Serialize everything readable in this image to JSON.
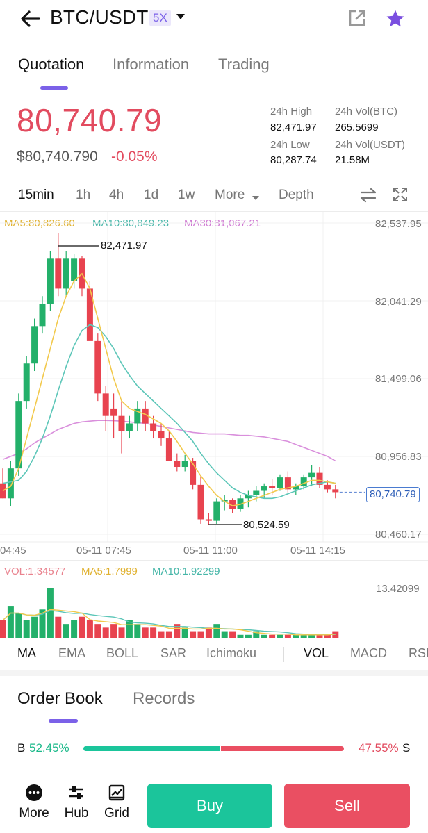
{
  "header": {
    "pair": "BTC/USDT",
    "leverage": "5X",
    "icons": [
      "back-arrow-icon",
      "caret-down-icon",
      "share-icon",
      "star-icon"
    ]
  },
  "tabs": [
    {
      "label": "Quotation",
      "active": true
    },
    {
      "label": "Information",
      "active": false
    },
    {
      "label": "Trading",
      "active": false
    }
  ],
  "price": {
    "last": "80,740.79",
    "usd": "$80,740.790",
    "change": "-0.05%"
  },
  "stats": {
    "high_label": "24h High",
    "high_value": "82,471.97",
    "low_label": "24h Low",
    "low_value": "80,287.74",
    "vol_btc_label": "24h Vol(BTC)",
    "vol_btc_value": "265.5699",
    "vol_usdt_label": "24h Vol(USDT)",
    "vol_usdt_value": "21.58M"
  },
  "intervals": [
    {
      "label": "15min",
      "active": true
    },
    {
      "label": "1h",
      "active": false
    },
    {
      "label": "4h",
      "active": false
    },
    {
      "label": "1d",
      "active": false
    },
    {
      "label": "1w",
      "active": false
    },
    {
      "label": "More",
      "active": false
    },
    {
      "label": "Depth",
      "active": false
    }
  ],
  "chart": {
    "ma5_label": "MA5:80,826.60",
    "ma10_label": "MA10:80,849.23",
    "ma30_label": "MA30:81,067.21",
    "y_ticks": [
      "82,537.95",
      "82,041.29",
      "81,499.06",
      "80,956.83",
      "80,460.17"
    ],
    "x_ticks": [
      "04:45",
      "05-11 07:45",
      "05-11 11:00",
      "05-11 14:15"
    ],
    "high_marker": "82,471.97",
    "low_marker": "80,524.59",
    "last_marker": "80,740.79",
    "colors": {
      "up": "#23b06a",
      "down": "#e8434f",
      "ma5": "#f2c94c",
      "ma10": "#5cc6b8",
      "ma30": "#d98fdc"
    }
  },
  "chart_data": {
    "type": "candlestick",
    "ylim": [
      80460.17,
      82537.95
    ],
    "candles": [
      {
        "o": 80800,
        "h": 80900,
        "l": 80700,
        "c": 80700
      },
      {
        "o": 80700,
        "h": 80950,
        "l": 80650,
        "c": 80900
      },
      {
        "o": 80900,
        "h": 81400,
        "l": 80850,
        "c": 81350
      },
      {
        "o": 81350,
        "h": 81650,
        "l": 81300,
        "c": 81600
      },
      {
        "o": 81600,
        "h": 81900,
        "l": 81550,
        "c": 81850
      },
      {
        "o": 81850,
        "h": 82050,
        "l": 81800,
        "c": 82000
      },
      {
        "o": 82000,
        "h": 82350,
        "l": 81950,
        "c": 82300
      },
      {
        "o": 82300,
        "h": 82472,
        "l": 82050,
        "c": 82100
      },
      {
        "o": 82100,
        "h": 82350,
        "l": 82050,
        "c": 82300
      },
      {
        "o": 82150,
        "h": 82330,
        "l": 82100,
        "c": 82300
      },
      {
        "o": 82300,
        "h": 82320,
        "l": 82050,
        "c": 82100
      },
      {
        "o": 82100,
        "h": 82150,
        "l": 81750,
        "c": 81750
      },
      {
        "o": 81750,
        "h": 81800,
        "l": 81350,
        "c": 81400
      },
      {
        "o": 81400,
        "h": 81450,
        "l": 81150,
        "c": 81250
      },
      {
        "o": 81300,
        "h": 81400,
        "l": 81100,
        "c": 81250
      },
      {
        "o": 81250,
        "h": 81350,
        "l": 81000,
        "c": 81150
      },
      {
        "o": 81150,
        "h": 81250,
        "l": 81100,
        "c": 81200
      },
      {
        "o": 81200,
        "h": 81350,
        "l": 81150,
        "c": 81300
      },
      {
        "o": 81300,
        "h": 81350,
        "l": 81150,
        "c": 81200
      },
      {
        "o": 81200,
        "h": 81250,
        "l": 81100,
        "c": 81150
      },
      {
        "o": 81150,
        "h": 81200,
        "l": 81050,
        "c": 81100
      },
      {
        "o": 81100,
        "h": 81150,
        "l": 80950,
        "c": 80950
      },
      {
        "o": 80950,
        "h": 81000,
        "l": 80880,
        "c": 80910
      },
      {
        "o": 80910,
        "h": 80990,
        "l": 80880,
        "c": 80950
      },
      {
        "o": 80950,
        "h": 80970,
        "l": 80760,
        "c": 80790
      },
      {
        "o": 80790,
        "h": 80850,
        "l": 80530,
        "c": 80560
      },
      {
        "o": 80560,
        "h": 80600,
        "l": 80525,
        "c": 80550
      },
      {
        "o": 80550,
        "h": 80700,
        "l": 80530,
        "c": 80680
      },
      {
        "o": 80680,
        "h": 80720,
        "l": 80620,
        "c": 80690
      },
      {
        "o": 80690,
        "h": 80700,
        "l": 80600,
        "c": 80630
      },
      {
        "o": 80630,
        "h": 80720,
        "l": 80610,
        "c": 80700
      },
      {
        "o": 80700,
        "h": 80750,
        "l": 80640,
        "c": 80720
      },
      {
        "o": 80720,
        "h": 80780,
        "l": 80680,
        "c": 80750
      },
      {
        "o": 80750,
        "h": 80800,
        "l": 80700,
        "c": 80780
      },
      {
        "o": 80780,
        "h": 80830,
        "l": 80720,
        "c": 80770
      },
      {
        "o": 80770,
        "h": 80860,
        "l": 80750,
        "c": 80840
      },
      {
        "o": 80840,
        "h": 80880,
        "l": 80740,
        "c": 80760
      },
      {
        "o": 80760,
        "h": 80800,
        "l": 80720,
        "c": 80780
      },
      {
        "o": 80780,
        "h": 80860,
        "l": 80760,
        "c": 80840
      },
      {
        "o": 80840,
        "h": 80920,
        "l": 80780,
        "c": 80870
      },
      {
        "o": 80870,
        "h": 80910,
        "l": 80770,
        "c": 80790
      },
      {
        "o": 80790,
        "h": 80820,
        "l": 80740,
        "c": 80760
      },
      {
        "o": 80760,
        "h": 80790,
        "l": 80700,
        "c": 80741
      }
    ],
    "ma5": [
      80750,
      80780,
      80900,
      81100,
      81300,
      81500,
      81700,
      81900,
      82050,
      82150,
      82200,
      82100,
      81900,
      81700,
      81500,
      81350,
      81300,
      81280,
      81260,
      81230,
      81200,
      81150,
      81080,
      81000,
      80930,
      80850,
      80780,
      80720,
      80680,
      80650,
      80660,
      80680,
      80700,
      80720,
      80740,
      80760,
      80770,
      80780,
      80800,
      80820,
      80820,
      80810,
      80800
    ],
    "ma10": [
      80800,
      80810,
      80820,
      80880,
      80980,
      81100,
      81250,
      81420,
      81580,
      81720,
      81820,
      81860,
      81840,
      81780,
      81700,
      81600,
      81520,
      81450,
      81400,
      81350,
      81300,
      81250,
      81200,
      81140,
      81080,
      81000,
      80930,
      80870,
      80820,
      80770,
      80740,
      80720,
      80710,
      80700,
      80700,
      80710,
      80730,
      80750,
      80770,
      80790,
      80800,
      80810,
      80800
    ],
    "ma30": [
      80960,
      80980,
      81000,
      81030,
      81070,
      81100,
      81130,
      81160,
      81180,
      81200,
      81210,
      81215,
      81220,
      81220,
      81218,
      81215,
      81210,
      81205,
      81200,
      81190,
      81180,
      81170,
      81160,
      81150,
      81140,
      81135,
      81130,
      81130,
      81130,
      81125,
      81120,
      81120,
      81115,
      81110,
      81100,
      81090,
      81080,
      81060,
      81040,
      81020,
      81000,
      80980,
      80950
    ],
    "volumes": [
      5,
      9,
      7,
      5,
      6,
      8,
      14,
      6,
      4,
      5,
      6,
      5,
      4,
      3,
      4,
      3,
      5,
      4,
      3,
      3,
      2,
      2,
      4,
      3,
      2,
      2,
      3,
      4,
      2,
      2,
      1,
      1,
      2,
      1,
      1,
      1,
      1,
      1,
      1,
      1,
      1,
      1,
      2
    ],
    "vol_up": [
      false,
      true,
      true,
      true,
      true,
      true,
      true,
      false,
      true,
      true,
      false,
      false,
      false,
      false,
      false,
      false,
      true,
      true,
      false,
      false,
      false,
      false,
      false,
      true,
      false,
      false,
      false,
      true,
      true,
      false,
      true,
      true,
      true,
      true,
      false,
      true,
      false,
      true,
      true,
      true,
      false,
      false,
      false
    ]
  },
  "volume": {
    "vol_label": "VOL:1.34577",
    "ma5_label": "MA5:1.7999",
    "ma10_label": "MA10:1.92299",
    "max_label": "13.42099"
  },
  "indicators": [
    {
      "label": "MA",
      "active": true
    },
    {
      "label": "EMA",
      "active": false
    },
    {
      "label": "BOLL",
      "active": false
    },
    {
      "label": "SAR",
      "active": false
    },
    {
      "label": "Ichimoku",
      "active": false
    },
    {
      "label": "VOL",
      "active": true
    },
    {
      "label": "MACD",
      "active": false
    },
    {
      "label": "RSI",
      "active": false
    }
  ],
  "order_tabs": [
    {
      "label": "Order Book",
      "active": true
    },
    {
      "label": "Records",
      "active": false
    }
  ],
  "ratio": {
    "b_label": "B",
    "b_value": "52.45%",
    "s_value": "47.55%",
    "s_label": "S",
    "buy_fraction": 0.5245
  },
  "bottom_bar": {
    "more": "More",
    "hub": "Hub",
    "grid": "Grid",
    "buy": "Buy",
    "sell": "Sell"
  }
}
